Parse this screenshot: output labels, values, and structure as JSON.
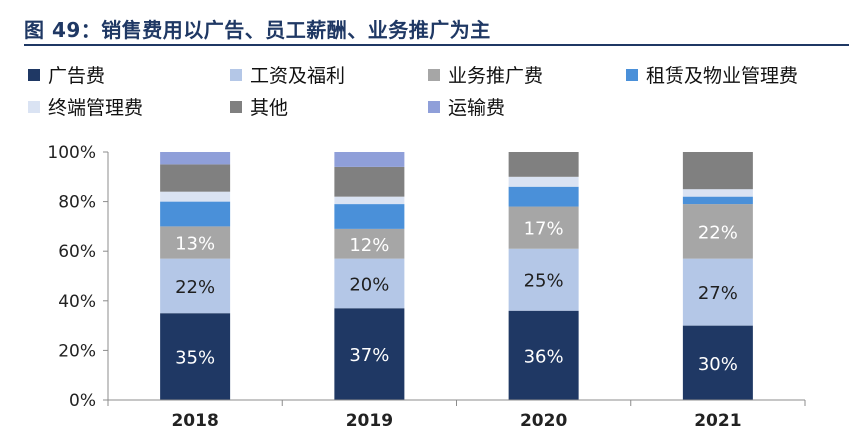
{
  "title": "图 49：销售费用以广告、员工薪酬、业务推广为主",
  "chart_data": {
    "type": "bar",
    "stacked": true,
    "percent": true,
    "categories": [
      "2018",
      "2019",
      "2020",
      "2021"
    ],
    "ylim": [
      0,
      100
    ],
    "yticks": [
      0,
      20,
      40,
      60,
      80,
      100
    ],
    "ytick_labels": [
      "0%",
      "20%",
      "40%",
      "60%",
      "80%",
      "100%"
    ],
    "series": [
      {
        "name": "广告费",
        "color": "#1f3864",
        "values": [
          35,
          37,
          36,
          30
        ],
        "labels": [
          "35%",
          "37%",
          "36%",
          "30%"
        ],
        "label_color": "#ffffff"
      },
      {
        "name": "工资及福利",
        "color": "#b4c7e7",
        "values": [
          22,
          20,
          25,
          27
        ],
        "labels": [
          "22%",
          "20%",
          "25%",
          "27%"
        ],
        "label_color": "#1f1f1f"
      },
      {
        "name": "业务推广费",
        "color": "#a6a6a6",
        "values": [
          13,
          12,
          17,
          22
        ],
        "labels": [
          "13%",
          "12%",
          "17%",
          "22%"
        ],
        "label_color": "#ffffff"
      },
      {
        "name": "租赁及物业管理费",
        "color": "#4a90d9",
        "values": [
          10,
          10,
          8,
          3
        ],
        "labels": [
          "",
          "",
          "",
          ""
        ],
        "label_color": "#ffffff"
      },
      {
        "name": "终端管理费",
        "color": "#dae3f3",
        "values": [
          4,
          3,
          4,
          3
        ],
        "labels": [
          "",
          "",
          "",
          ""
        ],
        "label_color": "#000000"
      },
      {
        "name": "其他",
        "color": "#808080",
        "values": [
          11,
          12,
          10,
          15
        ],
        "labels": [
          "",
          "",
          "",
          ""
        ],
        "label_color": "#ffffff"
      },
      {
        "name": "运输费",
        "color": "#8f9fd9",
        "values": [
          5,
          6,
          0,
          0
        ],
        "labels": [
          "",
          "",
          "",
          ""
        ],
        "label_color": "#ffffff"
      }
    ],
    "legend_rows": [
      [
        0,
        1,
        2,
        3
      ],
      [
        4,
        5,
        6
      ]
    ]
  }
}
